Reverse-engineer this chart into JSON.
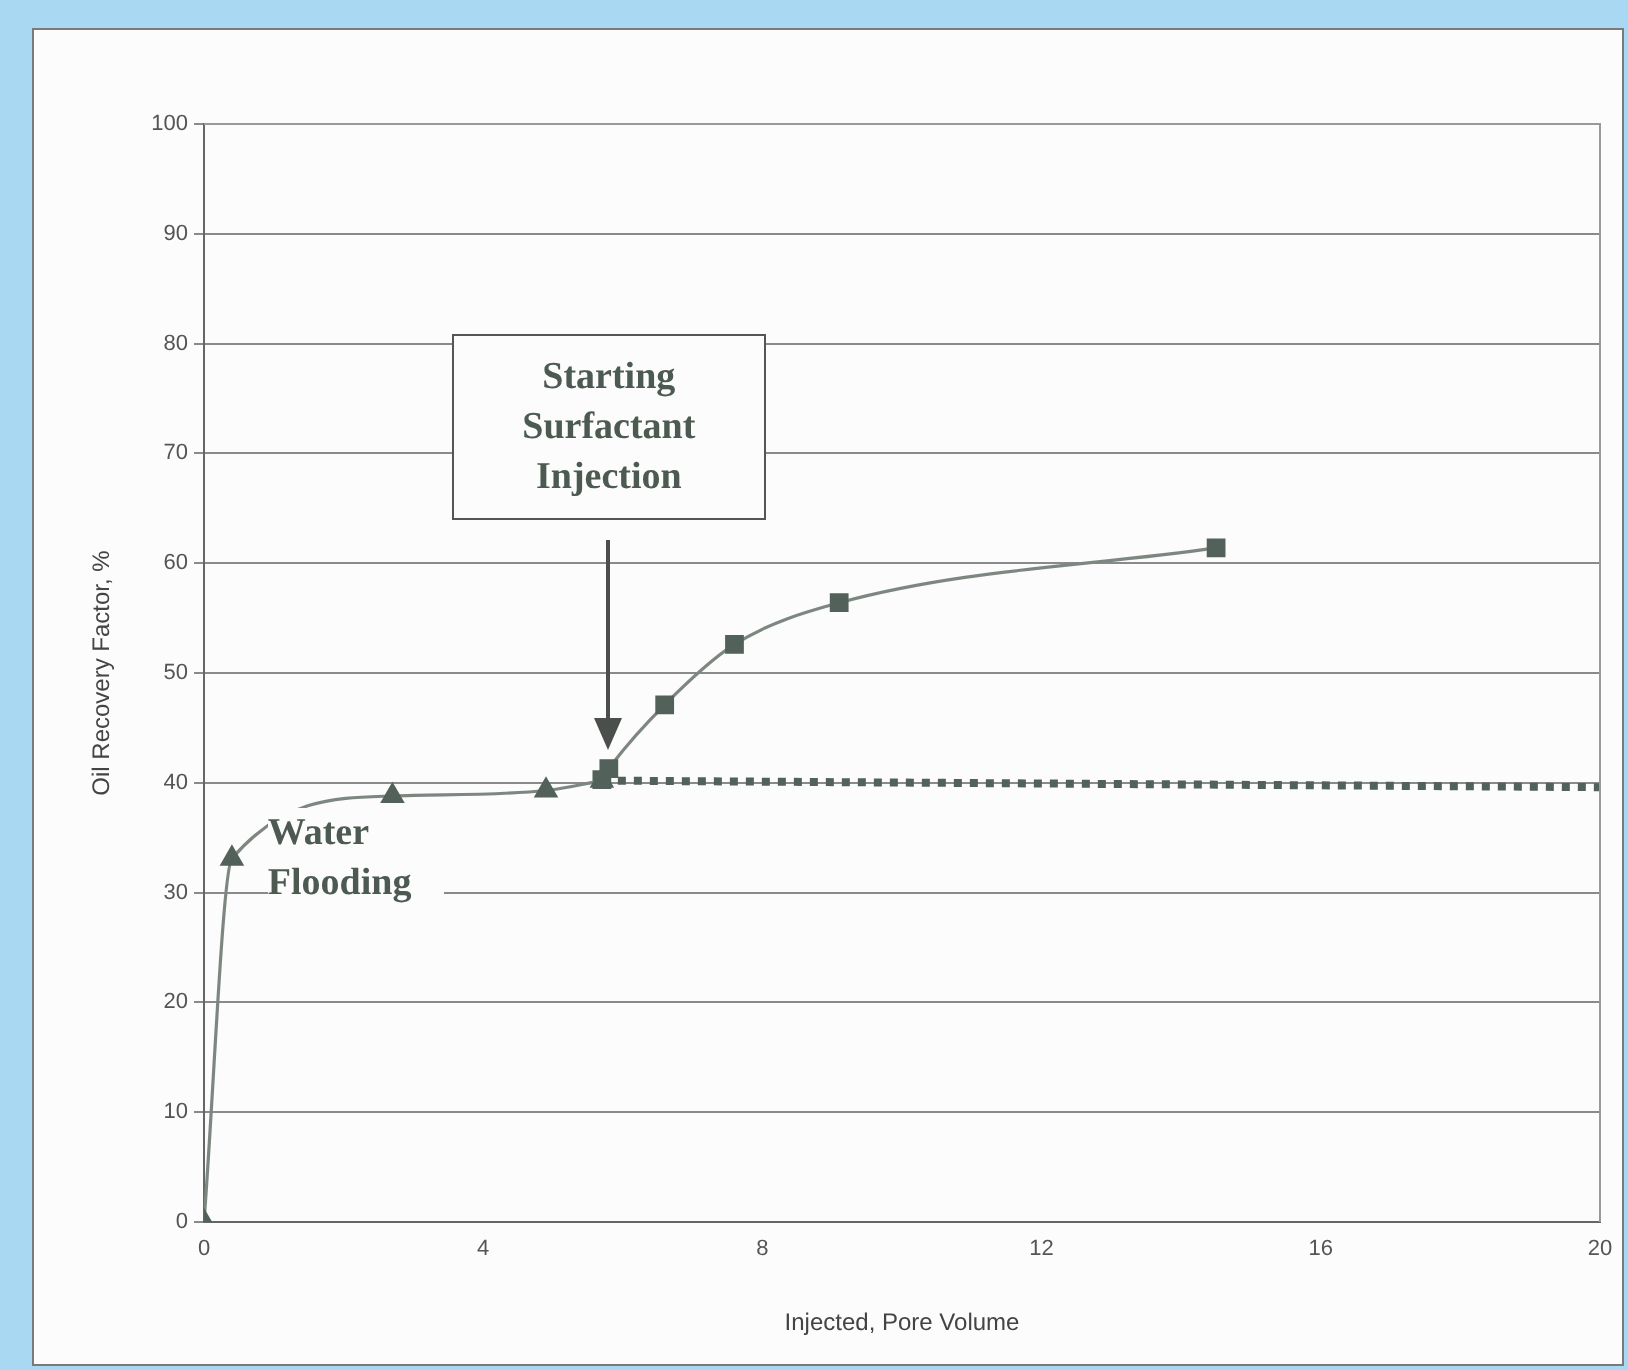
{
  "chart_data": {
    "type": "line",
    "xlabel": "Injected, Pore Volume",
    "ylabel": "Oil Recovery Factor, %",
    "xlim": [
      0,
      20
    ],
    "xticks": [
      0,
      4,
      8,
      12,
      16,
      20
    ],
    "ylim": [
      0,
      100
    ],
    "yticks": [
      0,
      10,
      20,
      30,
      40,
      50,
      60,
      70,
      80,
      90,
      100
    ],
    "grid": "y",
    "series": [
      {
        "type": "line",
        "color": "#52625a",
        "marker": "triangle",
        "line_style": "solid",
        "x": [
          0,
          0.4,
          2.7,
          4.9,
          5.7
        ],
        "values": [
          0,
          33.1,
          38.8,
          39.3,
          40.2
        ]
      },
      {
        "type": "line",
        "color": "#52625a",
        "marker": "square",
        "line_style": "solid",
        "x": [
          5.7,
          5.8,
          6.6,
          7.6,
          9.1,
          14.5
        ],
        "values": [
          40.3,
          41.3,
          47.1,
          52.6,
          56.4,
          61.4
        ]
      },
      {
        "type": "line",
        "color": "#52625a",
        "marker": "none",
        "line_style": "dotted",
        "x": [
          5.7,
          20
        ],
        "values": [
          40.2,
          39.6
        ]
      }
    ],
    "annotations": [
      "Starting Surfactant Injection",
      "Water Flooding"
    ]
  }
}
